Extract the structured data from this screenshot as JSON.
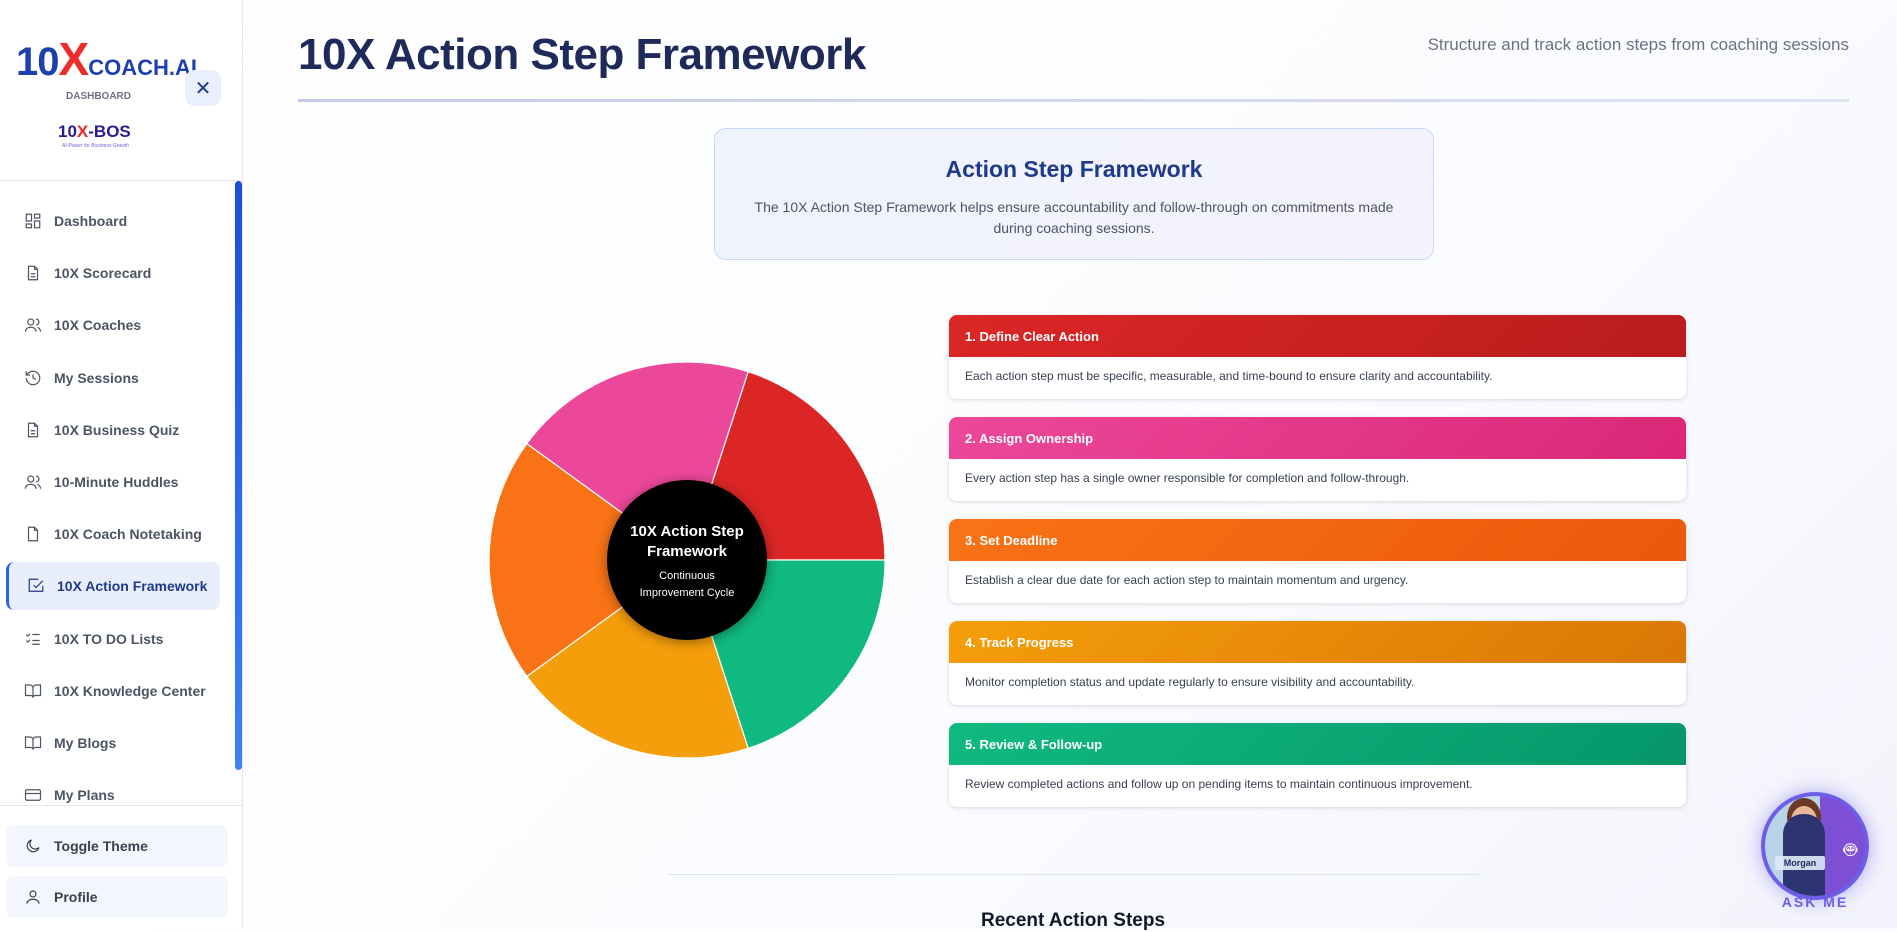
{
  "sidebar": {
    "logo": {
      "ten": "10",
      "x": "X",
      "coach": "COACH.AI"
    },
    "dashboard_label": "DASHBOARD",
    "bos_logo": {
      "ten": "10",
      "x": "X",
      "bos": "-BOS",
      "tagline": "AI-Power for Business Growth"
    },
    "items": [
      {
        "label": "Dashboard",
        "icon": "dashboard-icon"
      },
      {
        "label": "10X Scorecard",
        "icon": "document-icon"
      },
      {
        "label": "10X Coaches",
        "icon": "users-icon"
      },
      {
        "label": "My Sessions",
        "icon": "history-icon"
      },
      {
        "label": "10X Business Quiz",
        "icon": "document-icon"
      },
      {
        "label": "10-Minute Huddles",
        "icon": "users-icon"
      },
      {
        "label": "10X Coach Notetaking",
        "icon": "file-icon"
      },
      {
        "label": "10X Action Framework",
        "icon": "check-square-icon",
        "active": true
      },
      {
        "label": "10X TO DO Lists",
        "icon": "list-checks-icon"
      },
      {
        "label": "10X Knowledge Center",
        "icon": "book-icon"
      },
      {
        "label": "My Blogs",
        "icon": "book-icon"
      },
      {
        "label": "My Plans",
        "icon": "credit-card-icon"
      }
    ],
    "toggle_theme": "Toggle Theme",
    "profile": "Profile"
  },
  "header": {
    "title": "10X Action Step Framework",
    "subtitle": "Structure and track action steps from coaching sessions"
  },
  "info": {
    "title": "Action Step Framework",
    "description": "The 10X Action Step Framework helps ensure accountability and follow-through on commitments made during coaching sessions."
  },
  "wheel": {
    "center_title": "10X Action Step Framework",
    "center_subtitle": "Continuous Improvement Cycle",
    "segments": [
      {
        "color": "#dc2626"
      },
      {
        "color": "#10b981"
      },
      {
        "color": "#f59e0b"
      },
      {
        "color": "#f97316"
      },
      {
        "color": "#ec4899"
      }
    ]
  },
  "steps": [
    {
      "title": "1. Define Clear Action",
      "description": "Each action step must be specific, measurable, and time-bound to ensure clarity and accountability.",
      "colors": [
        "#dc2626",
        "#b91c1c"
      ]
    },
    {
      "title": "2. Assign Ownership",
      "description": "Every action step has a single owner responsible for completion and follow-through.",
      "colors": [
        "#ec4899",
        "#db2777"
      ]
    },
    {
      "title": "3. Set Deadline",
      "description": "Establish a clear due date for each action step to maintain momentum and urgency.",
      "colors": [
        "#f97316",
        "#ea580c"
      ]
    },
    {
      "title": "4. Track Progress",
      "description": "Monitor completion status and update regularly to ensure visibility and accountability.",
      "colors": [
        "#f59e0b",
        "#d97706"
      ]
    },
    {
      "title": "5. Review & Follow-up",
      "description": "Review completed actions and follow up on pending items to maintain continuous improvement.",
      "colors": [
        "#10b981",
        "#059669"
      ]
    }
  ],
  "recent_title": "Recent Action Steps",
  "assistant": {
    "name": "Morgan",
    "label": "ASK ME"
  }
}
